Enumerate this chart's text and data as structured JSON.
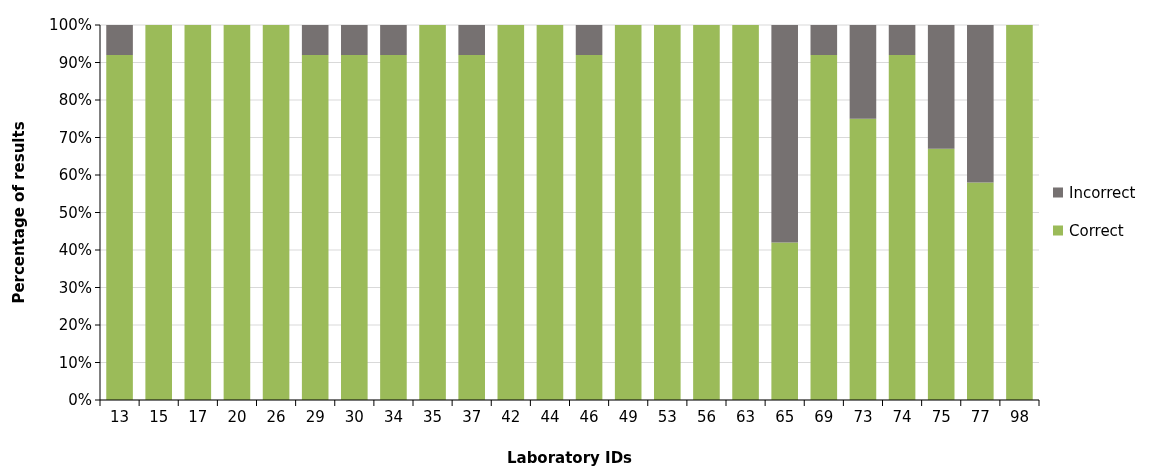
{
  "chart_data": {
    "type": "bar",
    "stacked": true,
    "xlabel": "Laboratory IDs",
    "ylabel": "Percentage of results",
    "categories": [
      "13",
      "15",
      "17",
      "20",
      "26",
      "29",
      "30",
      "34",
      "35",
      "37",
      "42",
      "44",
      "46",
      "49",
      "53",
      "56",
      "63",
      "65",
      "69",
      "73",
      "74",
      "75",
      "77",
      "98"
    ],
    "series": [
      {
        "name": "Correct",
        "color": "#9bbb59",
        "values": [
          92,
          100,
          100,
          100,
          100,
          92,
          92,
          92,
          100,
          92,
          100,
          100,
          92,
          100,
          100,
          100,
          100,
          42,
          92,
          75,
          92,
          67,
          58,
          100
        ]
      },
      {
        "name": "Incorrect",
        "color": "#767171",
        "values": [
          8,
          0,
          0,
          0,
          0,
          8,
          8,
          8,
          0,
          8,
          0,
          0,
          8,
          0,
          0,
          0,
          0,
          58,
          8,
          25,
          8,
          33,
          42,
          0
        ]
      }
    ],
    "ylim": [
      0,
      100
    ],
    "yticks": [
      {
        "value": 0,
        "label": "0%"
      },
      {
        "value": 10,
        "label": "10%"
      },
      {
        "value": 20,
        "label": "20%"
      },
      {
        "value": 30,
        "label": "30%"
      },
      {
        "value": 40,
        "label": "40%"
      },
      {
        "value": 50,
        "label": "50%"
      },
      {
        "value": 60,
        "label": "60%"
      },
      {
        "value": 70,
        "label": "70%"
      },
      {
        "value": 80,
        "label": "80%"
      },
      {
        "value": 90,
        "label": "90%"
      },
      {
        "value": 100,
        "label": "100%"
      }
    ],
    "grid": "y",
    "legend": "right"
  }
}
